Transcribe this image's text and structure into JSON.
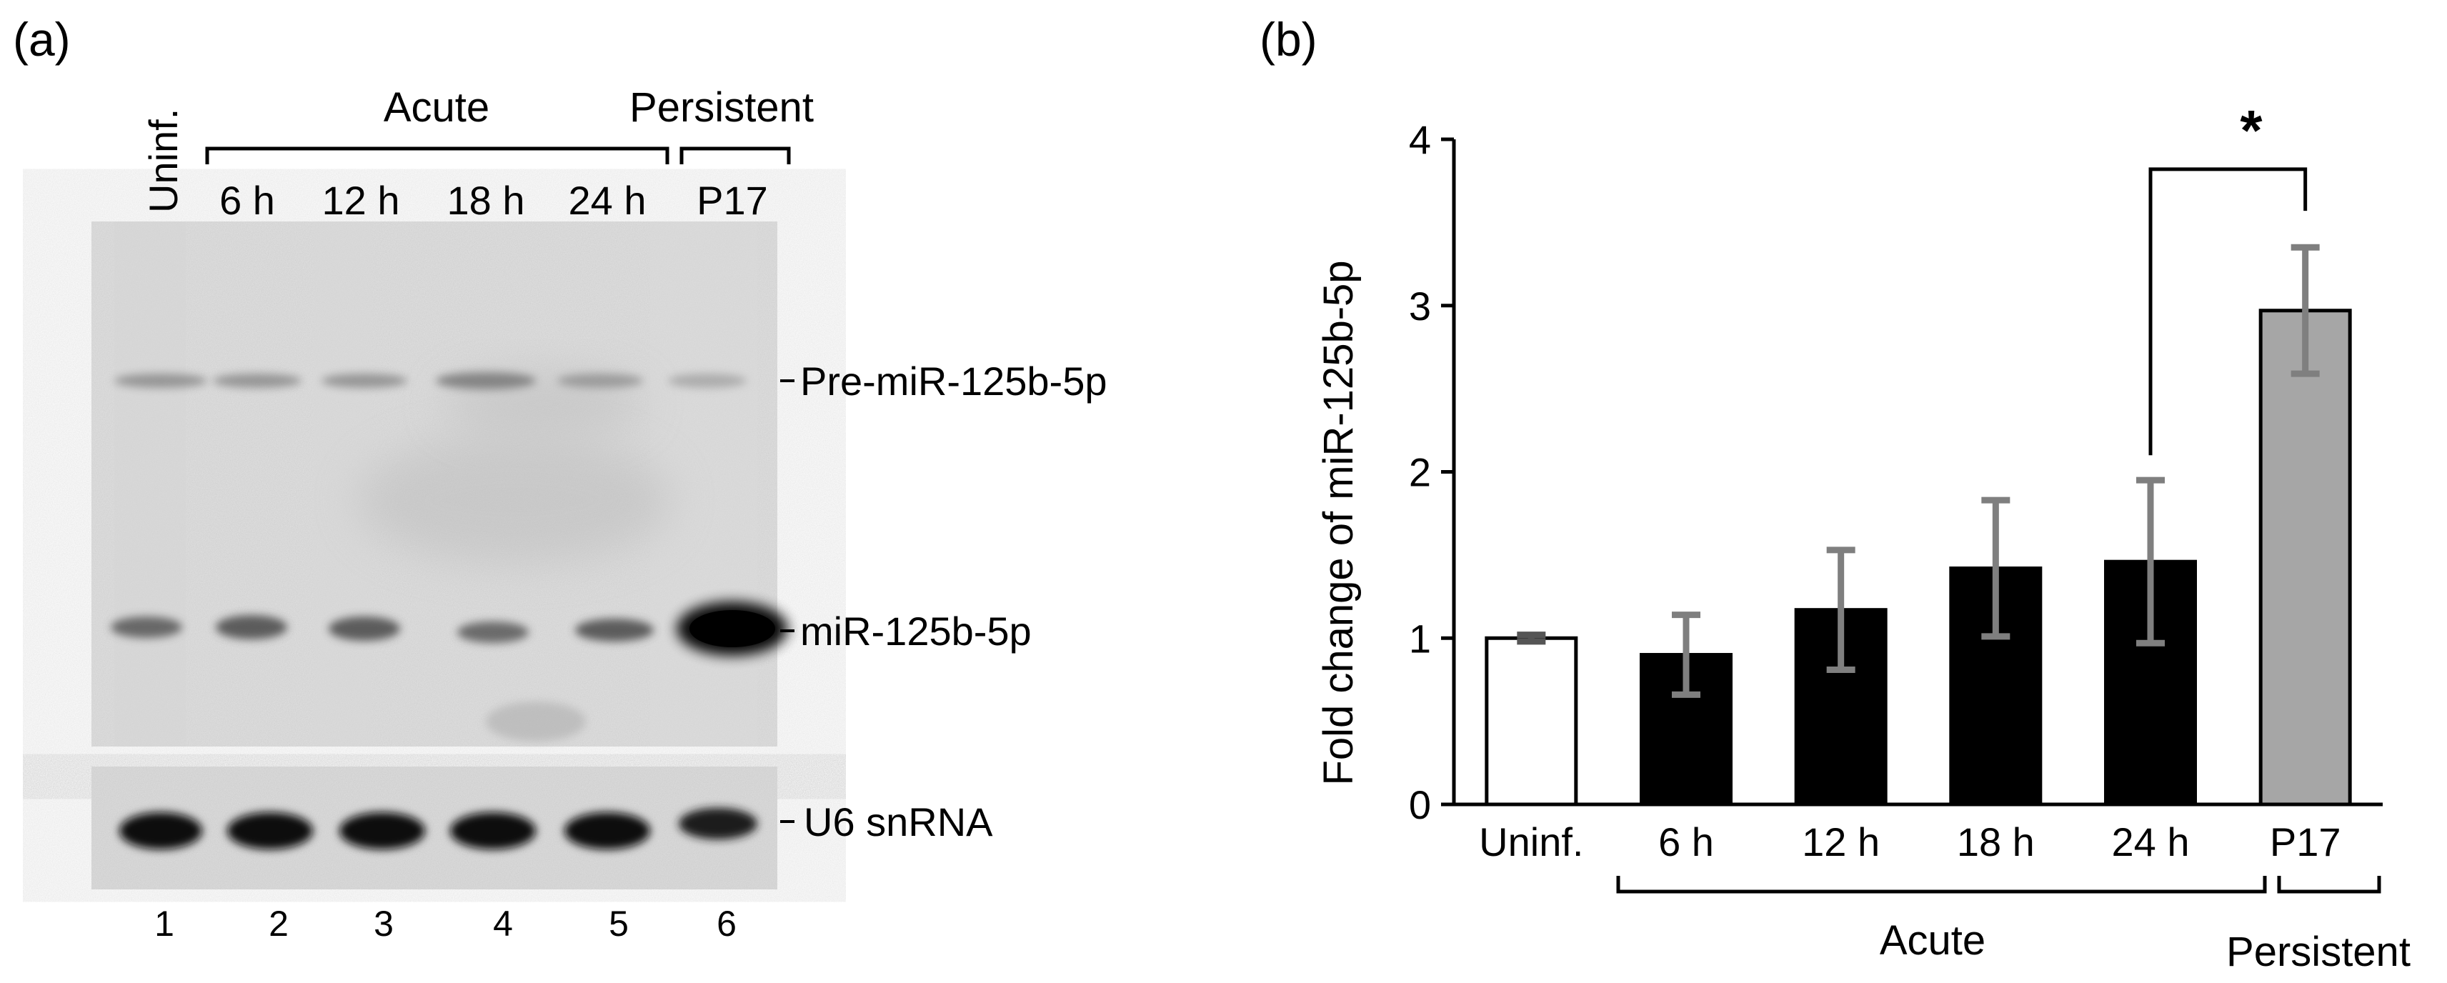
{
  "panel_a": {
    "label": "(a)",
    "lane_header_uninf": "Uninf.",
    "group_acute": "Acute",
    "group_persistent": "Persistent",
    "lane_labels": [
      "6 h",
      "12 h",
      "18 h",
      "24 h",
      "P17"
    ],
    "band_labels": {
      "pre": "Pre-miR-125b-5p",
      "mature": "miR-125b-5p",
      "control": "U6 snRNA"
    },
    "lane_numbers": [
      "1",
      "2",
      "3",
      "4",
      "5",
      "6"
    ]
  },
  "panel_b": {
    "label": "(b)",
    "significance_marker": "*",
    "group_acute": "Acute",
    "group_persistent": "Persistent"
  },
  "chart_data": {
    "type": "bar",
    "title": "",
    "ylabel": "Fold change of miR-125b-5p",
    "xlabel": "",
    "categories": [
      "Uninf.",
      "6 h",
      "12 h",
      "18 h",
      "24 h",
      "P17"
    ],
    "values": [
      1.0,
      0.9,
      1.17,
      1.42,
      1.46,
      2.97
    ],
    "errors": [
      0.02,
      0.24,
      0.36,
      0.41,
      0.49,
      0.38
    ],
    "bar_colors": [
      "#ffffff",
      "#000000",
      "#000000",
      "#000000",
      "#000000",
      "#a6a6a6"
    ],
    "ylim": [
      0,
      4
    ],
    "yticks": [
      "0",
      "1",
      "2",
      "3",
      "4"
    ],
    "grid": false
  }
}
